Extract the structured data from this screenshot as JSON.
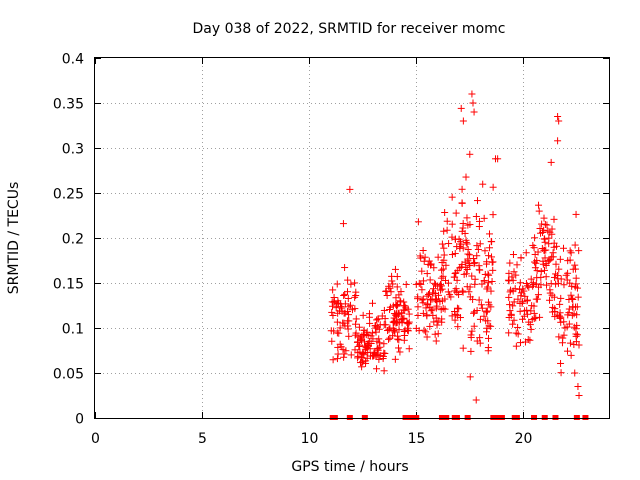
{
  "chart_data": {
    "type": "scatter",
    "title": "Day 038 of 2022, SRMTID for receiver momc",
    "xlabel": "GPS time / hours",
    "ylabel": "SRMTID / TECUs",
    "xlim": [
      0,
      24
    ],
    "ylim": [
      0,
      0.4
    ],
    "x_ticks": [
      0,
      5,
      10,
      15,
      20
    ],
    "x_tick_labels": [
      "0",
      "5",
      "10",
      "15",
      "20"
    ],
    "y_ticks": [
      0,
      0.05,
      0.1,
      0.15,
      0.2,
      0.25,
      0.3,
      0.35,
      0.4
    ],
    "y_tick_labels": [
      "0",
      "0.05",
      "0.1",
      "0.15",
      "0.2",
      "0.25",
      "0.3",
      "0.35",
      "0.4"
    ],
    "grid": true,
    "marker": "+",
    "color": "#ff0000",
    "clusters": [
      {
        "x_range": [
          11.0,
          12.2
        ],
        "center": 0.11,
        "spread": 0.035,
        "count": 70
      },
      {
        "x_range": [
          12.2,
          13.5
        ],
        "center": 0.085,
        "spread": 0.025,
        "count": 90
      },
      {
        "x_range": [
          13.5,
          14.7
        ],
        "center": 0.115,
        "spread": 0.03,
        "count": 90
      },
      {
        "x_range": [
          15.0,
          16.2
        ],
        "center": 0.13,
        "spread": 0.035,
        "count": 80
      },
      {
        "x_range": [
          16.2,
          17.5
        ],
        "center": 0.17,
        "spread": 0.055,
        "count": 90
      },
      {
        "x_range": [
          17.5,
          18.6
        ],
        "center": 0.16,
        "spread": 0.06,
        "count": 80
      },
      {
        "x_range": [
          19.3,
          20.5
        ],
        "center": 0.13,
        "spread": 0.04,
        "count": 70
      },
      {
        "x_range": [
          20.5,
          21.6
        ],
        "center": 0.17,
        "spread": 0.045,
        "count": 80
      },
      {
        "x_range": [
          21.6,
          22.6
        ],
        "center": 0.13,
        "spread": 0.05,
        "count": 70
      }
    ],
    "outliers": [
      {
        "x": 11.6,
        "y": 0.216
      },
      {
        "x": 11.9,
        "y": 0.254
      },
      {
        "x": 17.1,
        "y": 0.344
      },
      {
        "x": 17.2,
        "y": 0.33
      },
      {
        "x": 17.6,
        "y": 0.36
      },
      {
        "x": 17.65,
        "y": 0.35
      },
      {
        "x": 17.7,
        "y": 0.34
      },
      {
        "x": 17.5,
        "y": 0.293
      },
      {
        "x": 18.7,
        "y": 0.288
      },
      {
        "x": 18.8,
        "y": 0.288
      },
      {
        "x": 21.6,
        "y": 0.335
      },
      {
        "x": 21.65,
        "y": 0.33
      },
      {
        "x": 21.6,
        "y": 0.308
      },
      {
        "x": 21.3,
        "y": 0.284
      },
      {
        "x": 17.8,
        "y": 0.02
      },
      {
        "x": 22.6,
        "y": 0.025
      },
      {
        "x": 22.55,
        "y": 0.035
      },
      {
        "x": 22.4,
        "y": 0.05
      },
      {
        "x": 15.1,
        "y": 0.218
      }
    ],
    "zero_markers_x": [
      11.1,
      11.2,
      11.9,
      12.6,
      14.5,
      14.6,
      14.7,
      14.8,
      15.0,
      16.2,
      16.3,
      16.4,
      16.8,
      16.9,
      17.4,
      18.6,
      18.7,
      18.9,
      19.0,
      19.6,
      19.7,
      20.5,
      21.0,
      21.5,
      22.5,
      22.9
    ]
  }
}
